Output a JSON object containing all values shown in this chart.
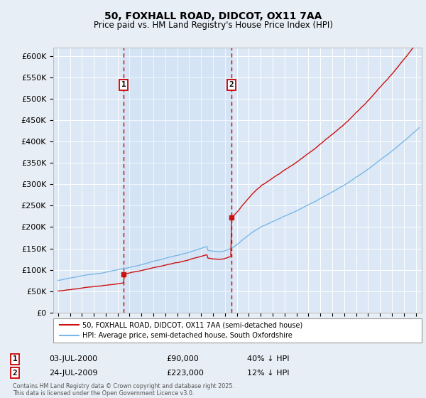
{
  "title": "50, FOXHALL ROAD, DIDCOT, OX11 7AA",
  "subtitle": "Price paid vs. HM Land Registry's House Price Index (HPI)",
  "ylim": [
    0,
    620000
  ],
  "yticks": [
    0,
    50000,
    100000,
    150000,
    200000,
    250000,
    300000,
    350000,
    400000,
    450000,
    500000,
    550000,
    600000
  ],
  "ytick_labels": [
    "£0",
    "£50K",
    "£100K",
    "£150K",
    "£200K",
    "£250K",
    "£300K",
    "£350K",
    "£400K",
    "£450K",
    "£500K",
    "£550K",
    "£600K"
  ],
  "background_color": "#e8eef5",
  "plot_bg_color": "#dce8f5",
  "grid_color": "#ffffff",
  "hpi_color": "#7ab8e8",
  "price_color": "#cc1111",
  "vline_color": "#cc0000",
  "sale1_date_num": 2000.5,
  "sale1_label": "1",
  "sale1_price": 90000,
  "sale1_hpi_note": "40% ↓ HPI",
  "sale1_date_str": "03-JUL-2000",
  "sale2_date_num": 2009.55,
  "sale2_label": "2",
  "sale2_price": 223000,
  "sale2_hpi_note": "12% ↓ HPI",
  "sale2_date_str": "24-JUL-2009",
  "legend_line1": "50, FOXHALL ROAD, DIDCOT, OX11 7AA (semi-detached house)",
  "legend_line2": "HPI: Average price, semi-detached house, South Oxfordshire",
  "footer": "Contains HM Land Registry data © Crown copyright and database right 2025.\nThis data is licensed under the Open Government Licence v3.0.",
  "xlim": [
    1994.6,
    2025.5
  ]
}
